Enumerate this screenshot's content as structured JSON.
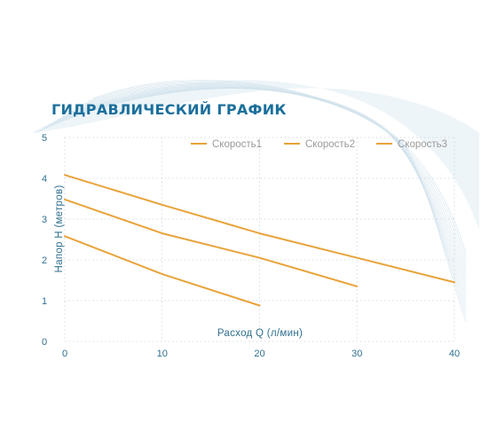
{
  "chart_data": {
    "type": "line",
    "title": "ГИДРАВЛИЧЕСКИЙ ГРАФИК",
    "xlabel": "Расход Q (л/мин)",
    "ylabel": "Напор Н (метров)",
    "xlim": [
      0,
      40
    ],
    "ylim": [
      0,
      5
    ],
    "x_ticks": [
      "0",
      "10",
      "20",
      "30",
      "40"
    ],
    "y_ticks": [
      "0",
      "1",
      "2",
      "3",
      "4",
      "5"
    ],
    "grid": true,
    "legend_position": "top-right",
    "line_color": "#e8a33a",
    "series": [
      {
        "name": "Скорость1",
        "points": [
          [
            0,
            4.08
          ],
          [
            10,
            3.35
          ],
          [
            20,
            2.65
          ],
          [
            30,
            2.05
          ],
          [
            40,
            1.45
          ]
        ]
      },
      {
        "name": "Скорость2",
        "points": [
          [
            0,
            3.48
          ],
          [
            10,
            2.65
          ],
          [
            20,
            2.05
          ],
          [
            30,
            1.35
          ]
        ]
      },
      {
        "name": "Скорость3",
        "points": [
          [
            0,
            2.58
          ],
          [
            10,
            1.65
          ],
          [
            20,
            0.88
          ]
        ]
      }
    ]
  }
}
